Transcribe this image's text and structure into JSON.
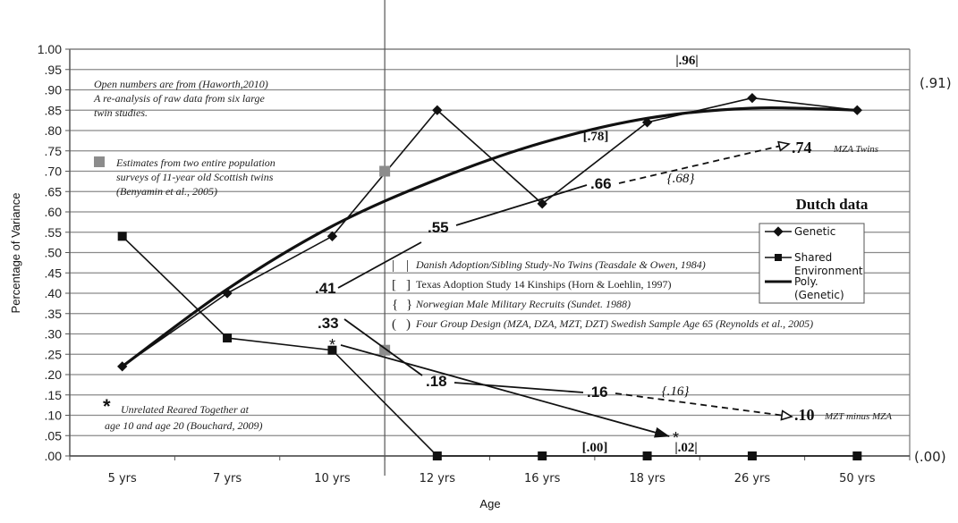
{
  "chart_data": {
    "type": "line",
    "title": "",
    "xlabel": "Age",
    "ylabel": "Percentage of Variance",
    "ylim": [
      0,
      1.0
    ],
    "y_ticks": [
      "1.00",
      ".95",
      ".90",
      ".85",
      ".80",
      ".75",
      ".70",
      ".65",
      ".60",
      ".55",
      ".50",
      ".45",
      ".40",
      ".35",
      ".30",
      ".25",
      ".20",
      ".15",
      ".10",
      ".05",
      ".00"
    ],
    "grid": true,
    "categories": [
      "5 yrs",
      "7 yrs",
      "10 yrs",
      "12 yrs",
      "16 yrs",
      "18 yrs",
      "26 yrs",
      "50 yrs"
    ],
    "series": [
      {
        "name": "Genetic",
        "marker": "diamond",
        "values": [
          0.22,
          0.4,
          0.54,
          0.85,
          0.62,
          0.82,
          0.88,
          0.85
        ]
      },
      {
        "name": "Shared Environment",
        "marker": "square",
        "values": [
          0.54,
          0.29,
          0.26,
          0.0,
          0.0,
          0.0,
          0.0,
          0.0
        ]
      },
      {
        "name": "Poly. (Genetic)",
        "marker": "none",
        "style": "thick-trend",
        "values": [
          0.22,
          0.41,
          0.565,
          0.68,
          0.77,
          0.83,
          0.855,
          0.85
        ]
      }
    ],
    "scottish_estimates": {
      "position": "between 10 yrs and 12 yrs",
      "values": [
        0.7,
        0.26
      ]
    },
    "mza_twins": {
      "label": "MZA Twins",
      "points": [
        ".41",
        ".55",
        ".66",
        ".74"
      ],
      "values": [
        0.41,
        0.55,
        0.66,
        0.74
      ]
    },
    "mzt_minus_mza": {
      "label": "MZT minus MZA",
      "points": [
        ".33",
        ".18",
        ".16",
        ".10"
      ],
      "values": [
        0.33,
        0.18,
        0.16,
        0.1
      ]
    },
    "unrelated_arrow": {
      "from": 0.28,
      "to": 0.05
    },
    "annotations": {
      "open_numbers": [
        "Open numbers are from (Haworth,2010)",
        "A re-analysis of raw data from six large",
        "twin studies."
      ],
      "scottish_note": [
        "Estimates from two entire population",
        "surveys of 11-year old Scottish twins",
        "(Benyamin et al., 2005)"
      ],
      "unrelated_note": [
        "Unrelated Reared Together at",
        "age 10 and age 20 (Bouchard, 2009)"
      ],
      "study_key": [
        {
          "symbol_open": "|",
          "symbol_close": "|",
          "text": "Danish Adoption/Sibling Study-No Twins (Teasdale & Owen, 1984)",
          "italic": true
        },
        {
          "symbol_open": "[",
          "symbol_close": "]",
          "text": "Texas Adoption Study 14 Kinships (Horn & Loehlin, 1997)",
          "italic": false
        },
        {
          "symbol_open": "{",
          "symbol_close": "}",
          "text": "Norwegian Male Military Recruits (Sundet. 1988)",
          "italic": true
        },
        {
          "symbol_open": "(",
          "symbol_close": ")",
          "text": "Four Group Design (MZA, DZA,  MZT, DZT) Swedish Sample Age 65 (Reynolds et al., 2005)",
          "italic": true
        }
      ],
      "labels": {
        "v96": "|.96|",
        "v78": "[.78]",
        "v68": "{.68}",
        "v16": "{.16}",
        "v00": "[.00]",
        "v02": "|.02|",
        "side91": "(.91)",
        "side00": "(.00)",
        "star": "*",
        "dutch": "Dutch data"
      }
    },
    "legend": {
      "placement": "right",
      "entries": [
        "Genetic",
        "Shared",
        "Environment",
        "Poly.",
        "(Genetic)"
      ]
    }
  }
}
